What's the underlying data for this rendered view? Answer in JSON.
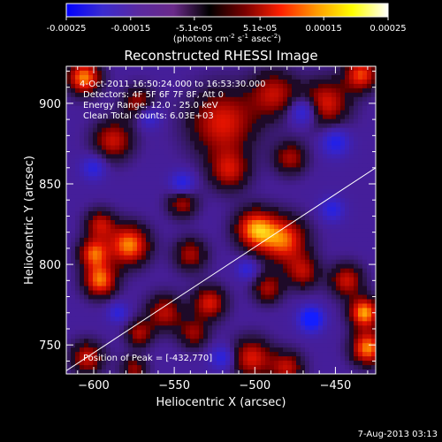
{
  "footer": {
    "date_stamp": "7-Aug-2013 03:13"
  },
  "colorbar": {
    "ticks": [
      "-0.00025",
      "-0.00015",
      "-5.1e-05",
      "5.1e-05",
      "0.00015",
      "0.00025"
    ],
    "tick_values": [
      -0.00025,
      -0.00015,
      -5.1e-05,
      5.1e-05,
      0.00015,
      0.00025
    ],
    "range": [
      -0.00025,
      0.00025
    ],
    "units_label": "(photons cm",
    "units_exp1": "-2",
    "units_mid": " s",
    "units_exp2": "-1",
    "units_tail": " asec",
    "units_exp3": "-2",
    "units_close": ")",
    "stops": [
      "#0000ff",
      "#3a2bd0",
      "#5a2aa0",
      "#6a2a8a",
      "#000000",
      "#7a0000",
      "#ff2000",
      "#ff9a00",
      "#ffff00",
      "#ffffff"
    ]
  },
  "chart_data": {
    "type": "heatmap",
    "title": "Reconstructed RHESSI Image",
    "xlabel": "Heliocentric X (arcsec)",
    "ylabel": "Heliocentric Y (arcsec)",
    "xlim": [
      -617,
      -425
    ],
    "ylim": [
      732,
      923
    ],
    "xticks": [
      -600,
      -550,
      -500,
      -450
    ],
    "yticks": [
      750,
      800,
      850,
      900
    ],
    "xtick_labels": [
      "−600",
      "−550",
      "−500",
      "−450"
    ],
    "ytick_labels": [
      "750",
      "800",
      "850",
      "900"
    ],
    "limb_line": {
      "x": [
        -617,
        -425
      ],
      "y": [
        734,
        860
      ]
    },
    "peak": {
      "x": -432,
      "y": 770
    },
    "annotations": {
      "time_range": "4-Oct-2011 16:50:24.000 to 16:53:30.000",
      "detectors": "Detectors: 4F 5F 6F 7F 8F, Att 0",
      "energy_range": "Energy Range: 12.0 - 25.0 keV",
      "clean_total": "Clean    Total counts: 6.03E+03",
      "peak_text": "Position of Peak = [-432,770]"
    },
    "features": [
      {
        "x": -606,
        "y": 916,
        "r": 10,
        "v": 0.95
      },
      {
        "x": -520,
        "y": 888,
        "r": 20,
        "v": 0.72
      },
      {
        "x": -488,
        "y": 906,
        "r": 14,
        "v": 0.6
      },
      {
        "x": -456,
        "y": 900,
        "r": 14,
        "v": 0.7
      },
      {
        "x": -434,
        "y": 918,
        "r": 10,
        "v": 0.8
      },
      {
        "x": -588,
        "y": 877,
        "r": 12,
        "v": 0.65
      },
      {
        "x": -572,
        "y": 900,
        "r": 10,
        "v": 0.55
      },
      {
        "x": -516,
        "y": 858,
        "r": 12,
        "v": 0.6
      },
      {
        "x": -478,
        "y": 866,
        "r": 10,
        "v": 0.55
      },
      {
        "x": -545,
        "y": 838,
        "r": 9,
        "v": 0.55
      },
      {
        "x": -596,
        "y": 825,
        "r": 9,
        "v": 0.6
      },
      {
        "x": -578,
        "y": 812,
        "r": 12,
        "v": 0.95
      },
      {
        "x": -596,
        "y": 790,
        "r": 10,
        "v": 0.9
      },
      {
        "x": -600,
        "y": 807,
        "r": 9,
        "v": 0.8
      },
      {
        "x": -540,
        "y": 806,
        "r": 10,
        "v": 0.55
      },
      {
        "x": -528,
        "y": 776,
        "r": 10,
        "v": 0.7
      },
      {
        "x": -500,
        "y": 822,
        "r": 12,
        "v": 0.9
      },
      {
        "x": -482,
        "y": 815,
        "r": 14,
        "v": 0.85
      },
      {
        "x": -470,
        "y": 795,
        "r": 10,
        "v": 0.55
      },
      {
        "x": -492,
        "y": 785,
        "r": 9,
        "v": 0.55
      },
      {
        "x": -556,
        "y": 770,
        "r": 11,
        "v": 0.6
      },
      {
        "x": -538,
        "y": 757,
        "r": 9,
        "v": 0.5
      },
      {
        "x": -572,
        "y": 757,
        "r": 8,
        "v": 0.55
      },
      {
        "x": -604,
        "y": 742,
        "r": 10,
        "v": 0.65
      },
      {
        "x": -502,
        "y": 742,
        "r": 12,
        "v": 0.7
      },
      {
        "x": -480,
        "y": 736,
        "r": 10,
        "v": 0.6
      },
      {
        "x": -443,
        "y": 790,
        "r": 10,
        "v": 0.65
      },
      {
        "x": -432,
        "y": 770,
        "r": 9,
        "v": 1.0
      },
      {
        "x": -430,
        "y": 748,
        "r": 10,
        "v": 0.95
      },
      {
        "x": -575,
        "y": 735,
        "r": 8,
        "v": 0.5
      },
      {
        "x": -470,
        "y": 895,
        "r": 8,
        "v": -0.7
      },
      {
        "x": -465,
        "y": 766,
        "r": 7,
        "v": -0.95
      },
      {
        "x": -450,
        "y": 876,
        "r": 8,
        "v": -0.6
      },
      {
        "x": -566,
        "y": 892,
        "r": 7,
        "v": -0.55
      },
      {
        "x": -520,
        "y": 742,
        "r": 7,
        "v": -0.55
      },
      {
        "x": -545,
        "y": 850,
        "r": 7,
        "v": -0.6
      },
      {
        "x": -600,
        "y": 860,
        "r": 7,
        "v": -0.5
      },
      {
        "x": -452,
        "y": 834,
        "r": 7,
        "v": -0.5
      },
      {
        "x": -505,
        "y": 797,
        "r": 6,
        "v": -0.45
      },
      {
        "x": -585,
        "y": 770,
        "r": 6,
        "v": -0.45
      }
    ]
  }
}
